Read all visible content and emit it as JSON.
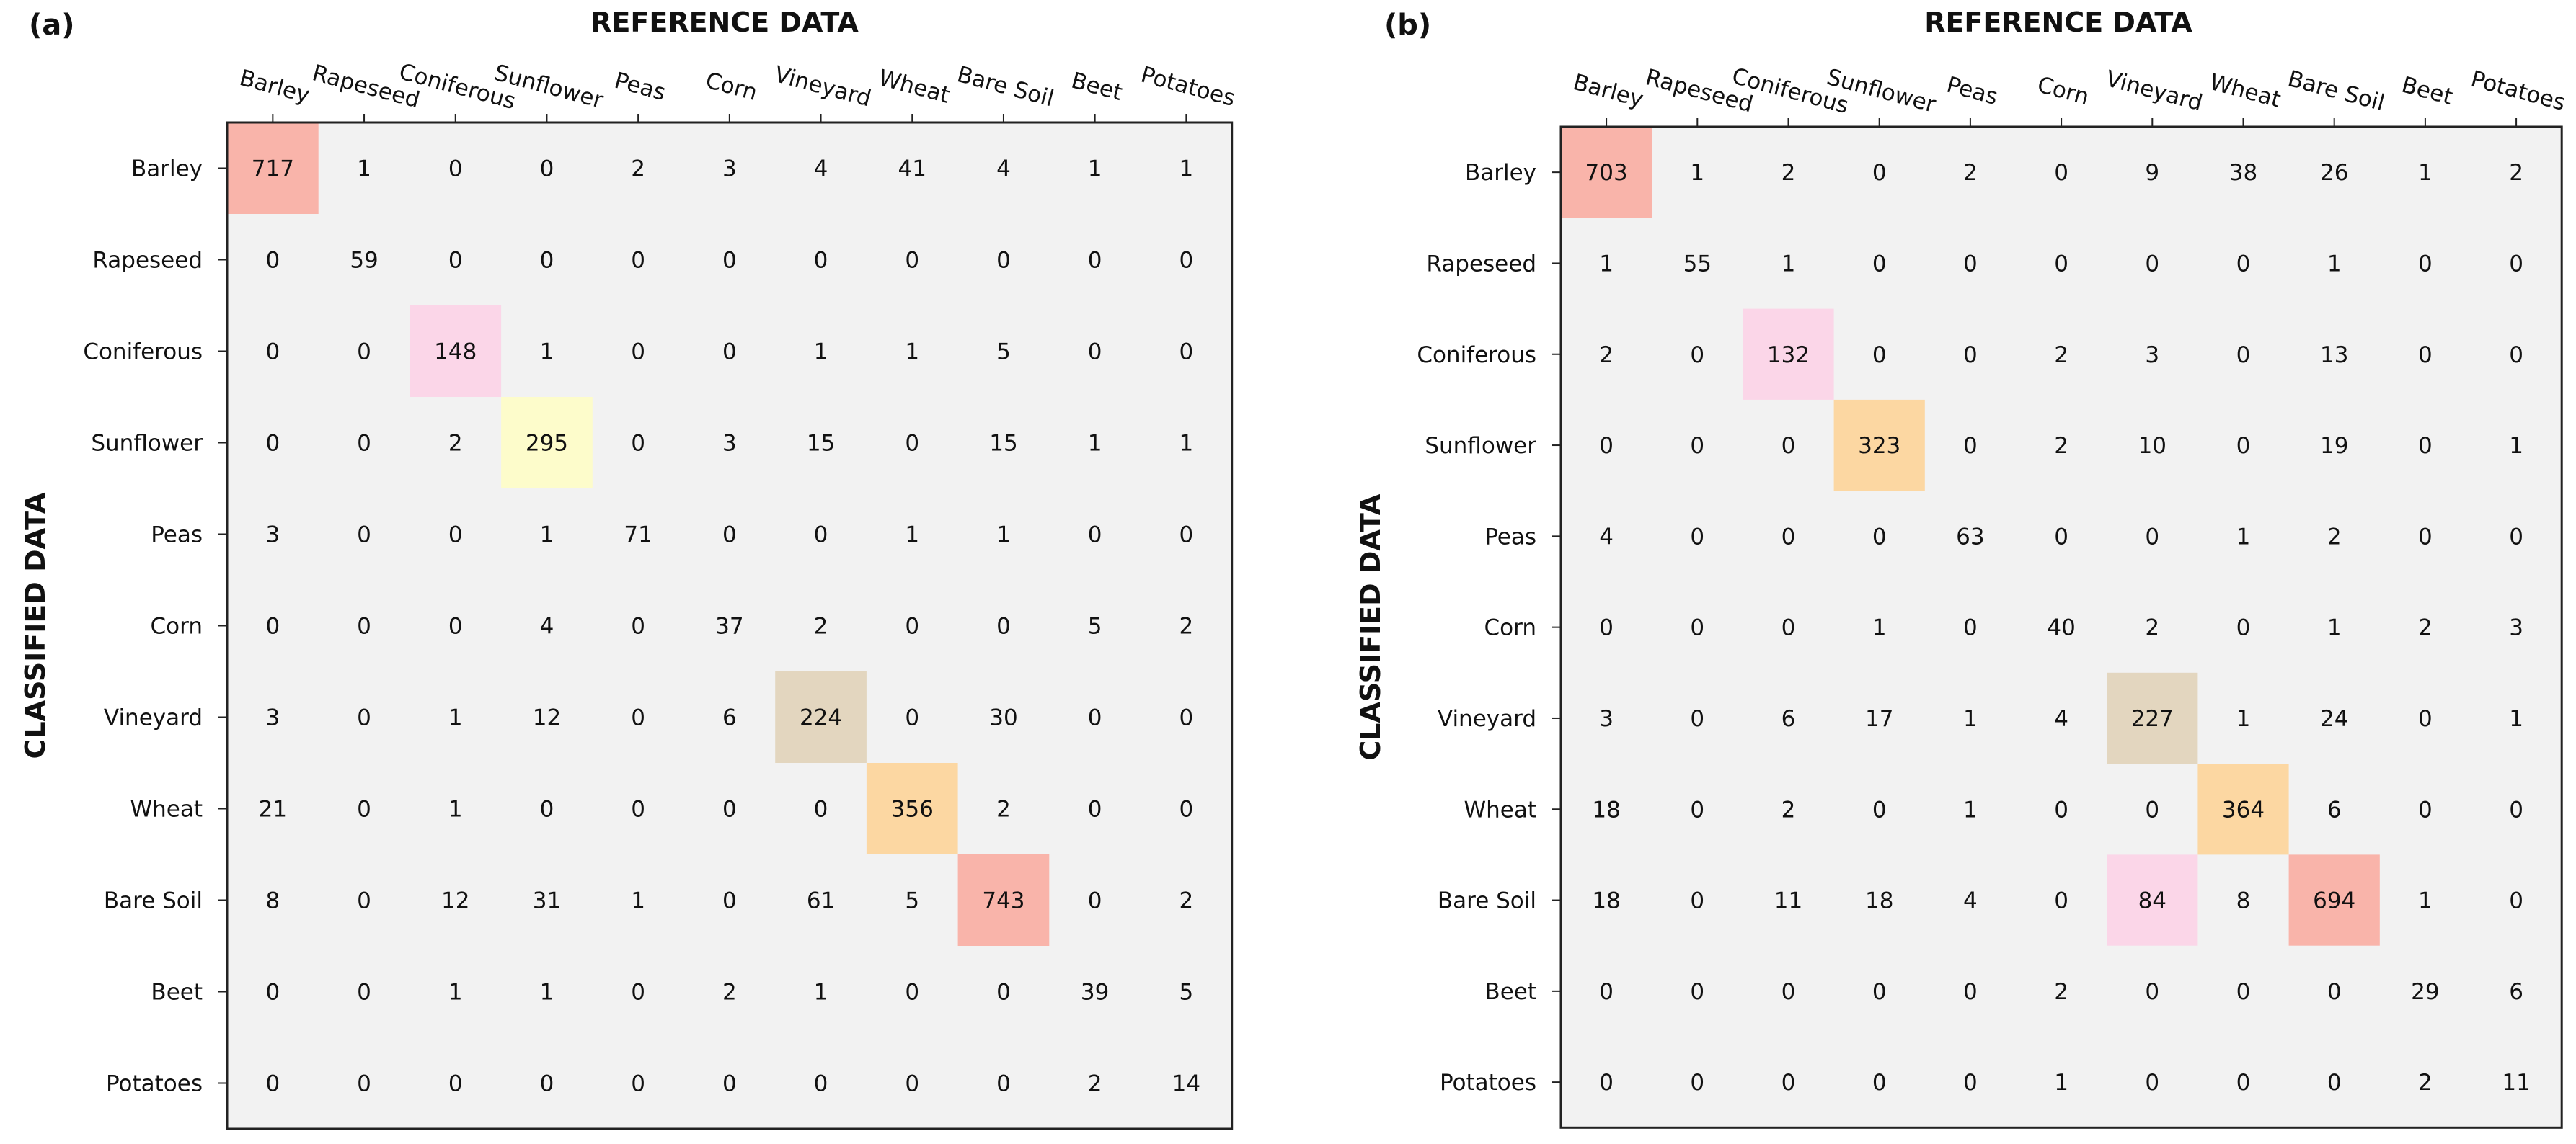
{
  "chart_data": [
    {
      "type": "heatmap",
      "panel_label": "(a)",
      "x_title": "REFERENCE DATA",
      "y_title": "CLASSIFIED DATA",
      "classes": [
        "Barley",
        "Rapeseed",
        "Coniferous",
        "Sunflower",
        "Peas",
        "Corn",
        "Vineyard",
        "Wheat",
        "Bare Soil",
        "Beet",
        "Potatoes"
      ],
      "matrix": [
        [
          717,
          1,
          0,
          0,
          2,
          3,
          4,
          41,
          4,
          1,
          1
        ],
        [
          0,
          59,
          0,
          0,
          0,
          0,
          0,
          0,
          0,
          0,
          0
        ],
        [
          0,
          0,
          148,
          1,
          0,
          0,
          1,
          1,
          5,
          0,
          0
        ],
        [
          0,
          0,
          2,
          295,
          0,
          3,
          15,
          0,
          15,
          1,
          1
        ],
        [
          3,
          0,
          0,
          1,
          71,
          0,
          0,
          1,
          1,
          0,
          0
        ],
        [
          0,
          0,
          0,
          4,
          0,
          37,
          2,
          0,
          0,
          5,
          2
        ],
        [
          3,
          0,
          1,
          12,
          0,
          6,
          224,
          0,
          30,
          0,
          0
        ],
        [
          21,
          0,
          1,
          0,
          0,
          0,
          0,
          356,
          2,
          0,
          0
        ],
        [
          8,
          0,
          12,
          31,
          1,
          0,
          61,
          5,
          743,
          0,
          2
        ],
        [
          0,
          0,
          1,
          1,
          0,
          2,
          1,
          0,
          0,
          39,
          5
        ],
        [
          0,
          0,
          0,
          0,
          0,
          0,
          0,
          0,
          0,
          2,
          14
        ]
      ],
      "highlights": [
        {
          "row": 0,
          "col": 0,
          "color": "#f9b4aa"
        },
        {
          "row": 2,
          "col": 2,
          "color": "#fbd6e8"
        },
        {
          "row": 3,
          "col": 3,
          "color": "#fdfccb"
        },
        {
          "row": 6,
          "col": 6,
          "color": "#e3d6bf"
        },
        {
          "row": 7,
          "col": 7,
          "color": "#fcd7a2"
        },
        {
          "row": 8,
          "col": 8,
          "color": "#f9b4aa"
        }
      ]
    },
    {
      "type": "heatmap",
      "panel_label": "(b)",
      "x_title": "REFERENCE DATA",
      "y_title": "CLASSIFIED DATA",
      "classes": [
        "Barley",
        "Rapeseed",
        "Coniferous",
        "Sunflower",
        "Peas",
        "Corn",
        "Vineyard",
        "Wheat",
        "Bare Soil",
        "Beet",
        "Potatoes"
      ],
      "matrix": [
        [
          703,
          1,
          2,
          0,
          2,
          0,
          9,
          38,
          26,
          1,
          2
        ],
        [
          1,
          55,
          1,
          0,
          0,
          0,
          0,
          0,
          1,
          0,
          0
        ],
        [
          2,
          0,
          132,
          0,
          0,
          2,
          3,
          0,
          13,
          0,
          0
        ],
        [
          0,
          0,
          0,
          323,
          0,
          2,
          10,
          0,
          19,
          0,
          1
        ],
        [
          4,
          0,
          0,
          0,
          63,
          0,
          0,
          1,
          2,
          0,
          0
        ],
        [
          0,
          0,
          0,
          1,
          0,
          40,
          2,
          0,
          1,
          2,
          3
        ],
        [
          3,
          0,
          6,
          17,
          1,
          4,
          227,
          1,
          24,
          0,
          1
        ],
        [
          18,
          0,
          2,
          0,
          1,
          0,
          0,
          364,
          6,
          0,
          0
        ],
        [
          18,
          0,
          11,
          18,
          4,
          0,
          84,
          8,
          694,
          1,
          0
        ],
        [
          0,
          0,
          0,
          0,
          0,
          2,
          0,
          0,
          0,
          29,
          6
        ],
        [
          0,
          0,
          0,
          0,
          0,
          1,
          0,
          0,
          0,
          2,
          11
        ]
      ],
      "highlights": [
        {
          "row": 0,
          "col": 0,
          "color": "#f9b4aa"
        },
        {
          "row": 2,
          "col": 2,
          "color": "#fbd6e8"
        },
        {
          "row": 3,
          "col": 3,
          "color": "#fcd7a2"
        },
        {
          "row": 6,
          "col": 6,
          "color": "#e3d6bf"
        },
        {
          "row": 7,
          "col": 7,
          "color": "#fcd7a2"
        },
        {
          "row": 8,
          "col": 6,
          "color": "#fbd6e8"
        },
        {
          "row": 8,
          "col": 8,
          "color": "#f9b4aa"
        }
      ]
    }
  ],
  "style": {
    "background": "#f2f2f2",
    "frame": "#222222"
  }
}
